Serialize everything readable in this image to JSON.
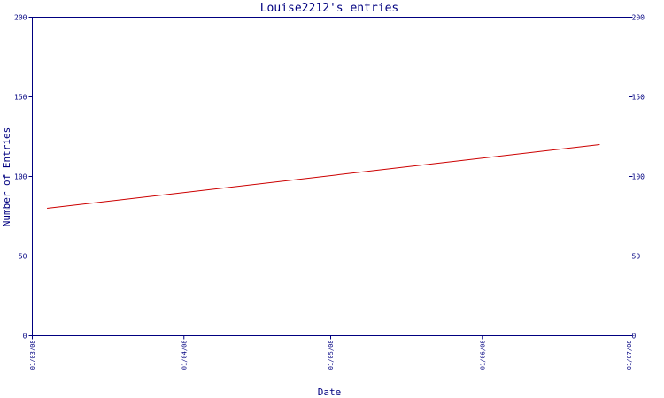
{
  "chart_data": {
    "type": "line",
    "title": "Louise2212's entries",
    "xlabel": "Date",
    "ylabel": "Number of Entries",
    "x_ticks": [
      "01/03/08",
      "01/04/08",
      "01/05/08",
      "01/06/08",
      "01/07/08"
    ],
    "y_ticks": [
      0,
      50,
      100,
      150,
      200
    ],
    "ylim": [
      0,
      200
    ],
    "xlim": [
      "01/03/08",
      "01/07/08"
    ],
    "grid": false,
    "legend": "none",
    "series": [
      {
        "x": [
          "04/03/08",
          "25/06/08"
        ],
        "y": [
          80,
          120
        ]
      }
    ]
  },
  "colors": {
    "axis": "#000080",
    "text": "#000080",
    "line": "#cc0000",
    "background": "#ffffff"
  }
}
